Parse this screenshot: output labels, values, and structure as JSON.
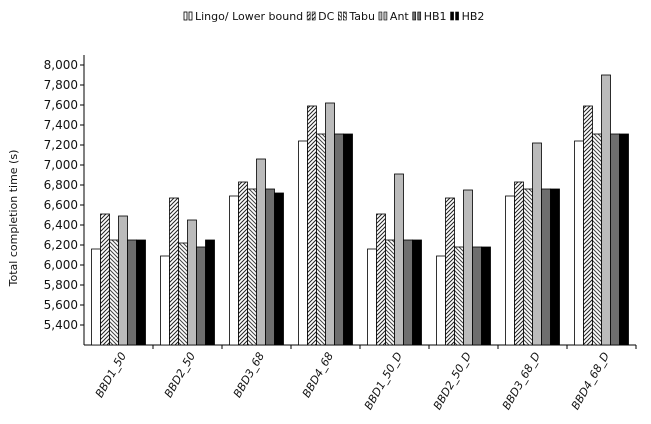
{
  "chart_data": {
    "type": "bar",
    "title": "",
    "xlabel": "",
    "ylabel": "Total completion time (s)",
    "ylim": [
      5200,
      8100
    ],
    "yticks": [
      5400,
      5600,
      5800,
      6000,
      6200,
      6400,
      6600,
      6800,
      7000,
      7200,
      7400,
      7600,
      7800,
      8000
    ],
    "ytick_labels": [
      "5,400",
      "5,600",
      "5,800",
      "6,000",
      "6,200",
      "6,400",
      "6,600",
      "6,800",
      "7,000",
      "7,200",
      "7,400",
      "7,600",
      "7,800",
      "8,000"
    ],
    "grid": false,
    "legend_position": "top-center",
    "categories": [
      "BBD1_50",
      "BBD2_50",
      "BBD3_68",
      "BBD4_68",
      "BBD1_50_D",
      "BBD2_50_D",
      "BBD3_68_D",
      "BBD4_68_D"
    ],
    "series": [
      {
        "name": "Lingo/ Lower bound",
        "fill": "white",
        "color": "#ffffff",
        "values": [
          6160,
          6090,
          6690,
          7240,
          6160,
          6090,
          6690,
          7240
        ]
      },
      {
        "name": "DC",
        "fill": "hatch-dense",
        "color": "#444444",
        "values": [
          6510,
          6670,
          6830,
          7590,
          6510,
          6670,
          6830,
          7590
        ]
      },
      {
        "name": "Tabu",
        "fill": "hatch-light",
        "color": "#777777",
        "values": [
          6250,
          6220,
          6760,
          7310,
          6250,
          6180,
          6760,
          7310
        ]
      },
      {
        "name": "Ant",
        "fill": "solid",
        "color": "#bbbbbb",
        "values": [
          6490,
          6450,
          7060,
          7620,
          6910,
          6750,
          7220,
          7900
        ]
      },
      {
        "name": "HB1",
        "fill": "solid",
        "color": "#6e6e6e",
        "values": [
          6250,
          6180,
          6760,
          7310,
          6250,
          6180,
          6760,
          7310
        ]
      },
      {
        "name": "HB2",
        "fill": "solid",
        "color": "#000000",
        "values": [
          6250,
          6250,
          6720,
          7310,
          6250,
          6180,
          6760,
          7310
        ]
      }
    ]
  }
}
